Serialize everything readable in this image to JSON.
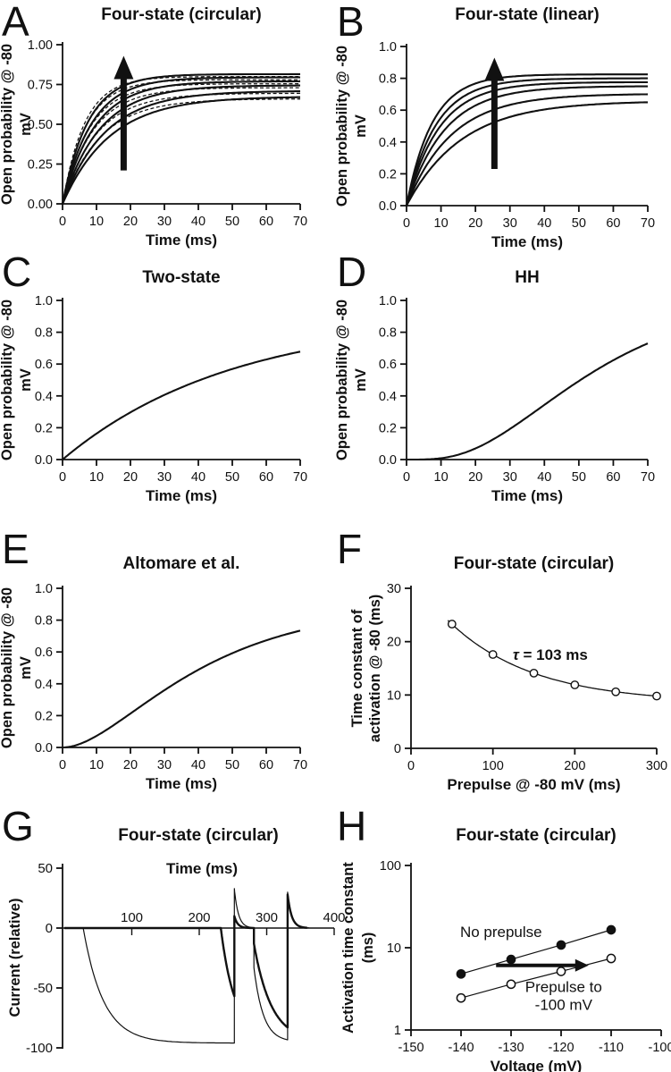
{
  "figure": {
    "background": "#ffffff",
    "ink_color": "#111111",
    "panel_letters": [
      "A",
      "B",
      "C",
      "D",
      "E",
      "F",
      "G",
      "H"
    ]
  },
  "chart_data": [
    {
      "letter": "A",
      "title": "Four-state (circular)",
      "type": "line",
      "xlabel": "Time (ms)",
      "ylabel_lines": [
        "Open probability @ -80",
        "mV"
      ],
      "xlim": [
        0,
        70
      ],
      "ylim": [
        0,
        1
      ],
      "xticks": [
        {
          "v": 0,
          "label": "0"
        },
        {
          "v": 10,
          "label": "10"
        },
        {
          "v": 20,
          "label": "20"
        },
        {
          "v": 30,
          "label": "30"
        },
        {
          "v": 40,
          "label": "40"
        },
        {
          "v": 50,
          "label": "50"
        },
        {
          "v": 60,
          "label": "60"
        },
        {
          "v": 70,
          "label": "70"
        }
      ],
      "yticks": [
        {
          "v": 0,
          "label": "0.00"
        },
        {
          "v": 0.25,
          "label": "0.25"
        },
        {
          "v": 0.5,
          "label": "0.50"
        },
        {
          "v": 0.75,
          "label": "0.75"
        },
        {
          "v": 1,
          "label": "1.00"
        }
      ],
      "series": [
        {
          "name": "sim-1",
          "style": "solid",
          "model": "saturating_exp",
          "amp": 0.675,
          "tau": 14
        },
        {
          "name": "sim-2",
          "style": "solid",
          "model": "saturating_exp",
          "amp": 0.71,
          "tau": 12.5
        },
        {
          "name": "sim-3",
          "style": "solid",
          "model": "saturating_exp",
          "amp": 0.745,
          "tau": 11
        },
        {
          "name": "sim-4",
          "style": "solid",
          "model": "saturating_exp",
          "amp": 0.77,
          "tau": 9.5
        },
        {
          "name": "sim-5",
          "style": "solid",
          "model": "saturating_exp",
          "amp": 0.795,
          "tau": 8.5
        },
        {
          "name": "sim-6",
          "style": "solid",
          "model": "saturating_exp",
          "amp": 0.815,
          "tau": 7.5
        },
        {
          "name": "fit-1",
          "style": "dashed",
          "model": "saturating_exp",
          "amp": 0.66,
          "tau": 11
        },
        {
          "name": "fit-2",
          "style": "dashed",
          "model": "saturating_exp",
          "amp": 0.695,
          "tau": 10
        },
        {
          "name": "fit-3",
          "style": "dashed",
          "model": "saturating_exp",
          "amp": 0.73,
          "tau": 9
        },
        {
          "name": "fit-4",
          "style": "dashed",
          "model": "saturating_exp",
          "amp": 0.755,
          "tau": 8
        },
        {
          "name": "fit-5",
          "style": "dashed",
          "model": "saturating_exp",
          "amp": 0.78,
          "tau": 7
        },
        {
          "name": "fit-6",
          "style": "dashed",
          "model": "saturating_exp",
          "amp": 0.8,
          "tau": 6.5
        }
      ],
      "annotations": [
        {
          "type": "arrow_up",
          "x": 18,
          "y_from": 0.21,
          "y_to": 0.93
        }
      ]
    },
    {
      "letter": "B",
      "title": "Four-state (linear)",
      "type": "line",
      "xlabel": "Time (ms)",
      "ylabel_lines": [
        "Open probability @ -80",
        "mV"
      ],
      "xlim": [
        0,
        70
      ],
      "ylim": [
        0,
        1
      ],
      "xticks": [
        {
          "v": 0,
          "label": "0"
        },
        {
          "v": 10,
          "label": "10"
        },
        {
          "v": 20,
          "label": "20"
        },
        {
          "v": 30,
          "label": "30"
        },
        {
          "v": 40,
          "label": "40"
        },
        {
          "v": 50,
          "label": "50"
        },
        {
          "v": 60,
          "label": "60"
        },
        {
          "v": 70,
          "label": "70"
        }
      ],
      "yticks": [
        {
          "v": 0,
          "label": "0.0"
        },
        {
          "v": 0.2,
          "label": "0.2"
        },
        {
          "v": 0.4,
          "label": "0.4"
        },
        {
          "v": 0.6,
          "label": "0.6"
        },
        {
          "v": 0.8,
          "label": "0.8"
        },
        {
          "v": 1,
          "label": "1.0"
        }
      ],
      "series": [
        {
          "name": "sim-1",
          "style": "solid",
          "model": "saturating_exp",
          "amp": 0.658,
          "tau": 16
        },
        {
          "name": "sim-2",
          "style": "solid",
          "model": "saturating_exp",
          "amp": 0.703,
          "tau": 13
        },
        {
          "name": "sim-3",
          "style": "solid",
          "model": "saturating_exp",
          "amp": 0.751,
          "tau": 11
        },
        {
          "name": "sim-4",
          "style": "solid",
          "model": "saturating_exp",
          "amp": 0.776,
          "tau": 9.5
        },
        {
          "name": "sim-5",
          "style": "solid",
          "model": "saturating_exp",
          "amp": 0.8,
          "tau": 8.5
        },
        {
          "name": "sim-6",
          "style": "solid",
          "model": "saturating_exp",
          "amp": 0.825,
          "tau": 7.5
        }
      ],
      "annotations": [
        {
          "type": "arrow_up",
          "x": 25.5,
          "y_from": 0.23,
          "y_to": 0.93
        }
      ]
    },
    {
      "letter": "C",
      "title": "Two-state",
      "type": "line",
      "xlabel": "Time (ms)",
      "ylabel_lines": [
        "Open probability @ -80",
        "mV"
      ],
      "xlim": [
        0,
        70
      ],
      "ylim": [
        0,
        1
      ],
      "xticks": [
        {
          "v": 0,
          "label": "0"
        },
        {
          "v": 10,
          "label": "10"
        },
        {
          "v": 20,
          "label": "20"
        },
        {
          "v": 30,
          "label": "30"
        },
        {
          "v": 40,
          "label": "40"
        },
        {
          "v": 50,
          "label": "50"
        },
        {
          "v": 60,
          "label": "60"
        },
        {
          "v": 70,
          "label": "70"
        }
      ],
      "yticks": [
        {
          "v": 0,
          "label": "0.0"
        },
        {
          "v": 0.2,
          "label": "0.2"
        },
        {
          "v": 0.4,
          "label": "0.4"
        },
        {
          "v": 0.6,
          "label": "0.6"
        },
        {
          "v": 0.8,
          "label": "0.8"
        },
        {
          "v": 1,
          "label": "1.0"
        }
      ],
      "series": [
        {
          "name": "two-state",
          "style": "solid",
          "model": "saturating_exp",
          "amp": 0.9,
          "tau": 50
        }
      ],
      "annotations": []
    },
    {
      "letter": "D",
      "title": "HH",
      "type": "line",
      "xlabel": "Time (ms)",
      "ylabel_lines": [
        "Open probability @ -80",
        "mV"
      ],
      "xlim": [
        0,
        70
      ],
      "ylim": [
        0,
        1
      ],
      "xticks": [
        {
          "v": 0,
          "label": "0"
        },
        {
          "v": 10,
          "label": "10"
        },
        {
          "v": 20,
          "label": "20"
        },
        {
          "v": 30,
          "label": "30"
        },
        {
          "v": 40,
          "label": "40"
        },
        {
          "v": 50,
          "label": "50"
        },
        {
          "v": 60,
          "label": "60"
        },
        {
          "v": 70,
          "label": "70"
        }
      ],
      "yticks": [
        {
          "v": 0,
          "label": "0.0"
        },
        {
          "v": 0.2,
          "label": "0.2"
        },
        {
          "v": 0.4,
          "label": "0.4"
        },
        {
          "v": 0.6,
          "label": "0.6"
        },
        {
          "v": 0.8,
          "label": "0.8"
        },
        {
          "v": 1,
          "label": "1.0"
        }
      ],
      "series": [
        {
          "name": "hh",
          "style": "solid",
          "model": "power_exp",
          "A": 1.028,
          "tau": 28,
          "n": 4
        }
      ],
      "annotations": []
    },
    {
      "letter": "E",
      "title": "Altomare et al.",
      "type": "line",
      "xlabel": "Time (ms)",
      "ylabel_lines": [
        "Open probability @ -80",
        "mV"
      ],
      "xlim": [
        0,
        70
      ],
      "ylim": [
        0,
        1
      ],
      "xticks": [
        {
          "v": 0,
          "label": "0"
        },
        {
          "v": 10,
          "label": "10"
        },
        {
          "v": 20,
          "label": "20"
        },
        {
          "v": 30,
          "label": "30"
        },
        {
          "v": 40,
          "label": "40"
        },
        {
          "v": 50,
          "label": "50"
        },
        {
          "v": 60,
          "label": "60"
        },
        {
          "v": 70,
          "label": "70"
        }
      ],
      "yticks": [
        {
          "v": 0,
          "label": "0.0"
        },
        {
          "v": 0.2,
          "label": "0.2"
        },
        {
          "v": 0.4,
          "label": "0.4"
        },
        {
          "v": 0.6,
          "label": "0.6"
        },
        {
          "v": 0.8,
          "label": "0.8"
        },
        {
          "v": 1,
          "label": "1.0"
        }
      ],
      "series": [
        {
          "name": "altomare",
          "style": "solid",
          "model": "power_exp",
          "A": 0.9,
          "tau": 30,
          "n": 2
        }
      ],
      "annotations": []
    },
    {
      "letter": "F",
      "title": "Four-state (circular)",
      "type": "scatter",
      "xlabel": "Prepulse @ -80 mV (ms)",
      "ylabel_lines": [
        "Time constant of",
        "activation @ -80 (ms)"
      ],
      "xlim": [
        0,
        300
      ],
      "ylim": [
        0,
        30
      ],
      "xticks": [
        {
          "v": 0,
          "label": "0"
        },
        {
          "v": 100,
          "label": "100"
        },
        {
          "v": 200,
          "label": "200"
        },
        {
          "v": 300,
          "label": "300"
        }
      ],
      "yticks": [
        {
          "v": 0,
          "label": "0"
        },
        {
          "v": 10,
          "label": "10"
        },
        {
          "v": 20,
          "label": "20"
        },
        {
          "v": 30,
          "label": "30"
        }
      ],
      "points": {
        "marker": "open-circle",
        "x": [
          50,
          100,
          150,
          200,
          250,
          300
        ],
        "y": [
          23.3,
          17.6,
          14.1,
          11.9,
          10.6,
          9.8
        ]
      },
      "fit": {
        "model": "offset_exp_decay",
        "base": 8.5,
        "amp": 24,
        "tau": 103,
        "x_from": 45,
        "x_to": 302
      },
      "annotations": [
        {
          "type": "tau_text",
          "italic": "τ",
          "rest": " = 103 ms",
          "x": 170,
          "y": 16.6
        }
      ]
    },
    {
      "letter": "G",
      "title": "Four-state (circular)",
      "type": "line",
      "xlabel": "Time (ms)",
      "ylabel_lines": [
        "Current (relative)"
      ],
      "xlim": [
        -3,
        402
      ],
      "ylim": [
        -105,
        52
      ],
      "xticks": [
        {
          "v": 100,
          "label": "100"
        },
        {
          "v": 200,
          "label": "200"
        },
        {
          "v": 300,
          "label": "300"
        },
        {
          "v": 400,
          "label": "400"
        }
      ],
      "yticks": [
        {
          "v": 50,
          "label": "50"
        },
        {
          "v": 0,
          "label": "0"
        },
        {
          "v": -50,
          "label": "-50"
        },
        {
          "v": -100,
          "label": "-100"
        }
      ],
      "series": [
        {
          "name": "trace-thin-with-long-prepulse",
          "stroke": 1.2,
          "segments": [
            {
              "k": "flat",
              "t0": 0,
              "t1": 28,
              "y": 0
            },
            {
              "k": "exp",
              "t0": 28,
              "t1": 252,
              "y0": 0,
              "yinf": -96,
              "tau": 30
            },
            {
              "k": "spike",
              "t0": 252,
              "t1": 281,
              "peak": 33,
              "tau": 6
            },
            {
              "k": "exp",
              "t0": 281,
              "t1": 331,
              "y0": -33,
              "yinf": -95,
              "tau": 14
            },
            {
              "k": "spike",
              "t0": 331,
              "t1": 363,
              "peak": 30,
              "tau": 6
            }
          ]
        },
        {
          "name": "trace-thick-no-prepulse",
          "stroke": 2.4,
          "segments": [
            {
              "k": "flat",
              "t0": 0,
              "t1": 232,
              "y": 0
            },
            {
              "k": "exp",
              "t0": 232,
              "t1": 252,
              "y0": 0,
              "yinf": -90,
              "tau": 20
            },
            {
              "k": "spike",
              "t0": 252,
              "t1": 281,
              "peak": 10,
              "tau": 5
            },
            {
              "k": "exp",
              "t0": 281,
              "t1": 331,
              "y0": -13,
              "yinf": -95,
              "tau": 26
            },
            {
              "k": "spike",
              "t0": 331,
              "t1": 360,
              "peak": 28,
              "tau": 6
            }
          ]
        }
      ],
      "annotations": []
    },
    {
      "letter": "H",
      "title": "Four-state (circular)",
      "type": "scatter",
      "xlabel": "Voltage (mV)",
      "ylabel_lines": [
        "Activation time constant",
        "(ms)"
      ],
      "xlim": [
        -150,
        -100
      ],
      "ylog": [
        1,
        100
      ],
      "xticks": [
        {
          "v": -150,
          "label": "-150"
        },
        {
          "v": -140,
          "label": "-140"
        },
        {
          "v": -130,
          "label": "-130"
        },
        {
          "v": -120,
          "label": "-120"
        },
        {
          "v": -110,
          "label": "-110"
        },
        {
          "v": -100,
          "label": "-100"
        }
      ],
      "yticks": [
        {
          "v": 1,
          "label": "1"
        },
        {
          "v": 10,
          "label": "10"
        },
        {
          "v": 100,
          "label": "100"
        }
      ],
      "series": [
        {
          "name": "No prepulse",
          "marker": "filled-circle",
          "x": [
            -140,
            -130,
            -120,
            -110
          ],
          "y": [
            4.8,
            7.2,
            10.8,
            16.5
          ]
        },
        {
          "name": "Prepulse to -100 mV",
          "marker": "open-circle",
          "x": [
            -140,
            -130,
            -120,
            -110
          ],
          "y": [
            2.45,
            3.6,
            5.15,
            7.4
          ]
        }
      ],
      "annotations": [
        {
          "type": "text",
          "text": "No prepulse",
          "x": -132,
          "y": 13.5
        },
        {
          "type": "text2",
          "lines": [
            "Prepulse to",
            "-100 mV"
          ],
          "x": -119.5,
          "y": 2.9
        },
        {
          "type": "arrow_right",
          "x_from": -133,
          "x_to": -114.5,
          "y": 6.1
        }
      ]
    }
  ]
}
